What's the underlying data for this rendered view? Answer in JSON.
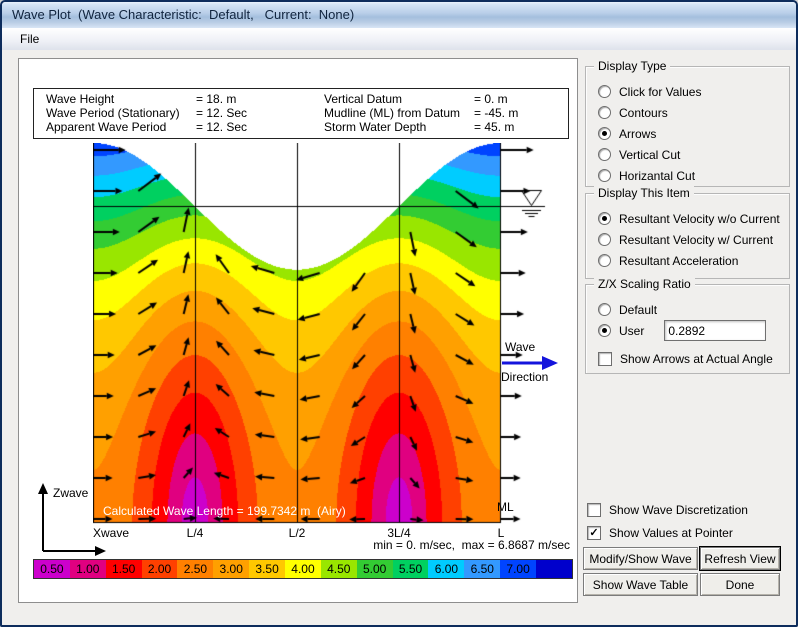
{
  "window": {
    "title": "Wave Plot  (Wave Characteristic:  Default,   Current:  None)",
    "menu_file": "File"
  },
  "stats": {
    "left": [
      {
        "label": "Wave Height",
        "value": "= 18. m"
      },
      {
        "label": "Wave Period (Stationary)",
        "value": "= 12. Sec"
      },
      {
        "label": "Apparent Wave Period",
        "value": "= 12. Sec"
      }
    ],
    "right": [
      {
        "label": "Vertical Datum",
        "value": "= 0. m"
      },
      {
        "label": "Mudline (ML) from Datum",
        "value": "= -45. m"
      },
      {
        "label": "Storm Water Depth",
        "value": "= 45. m"
      }
    ]
  },
  "plot": {
    "calc_label": "Calculated Wave Length = 199.7342 m  (Airy)",
    "minmax": "min = 0. m/sec,  max = 6.8687 m/sec",
    "x_axis": "Xwave",
    "z_axis": "Zwave",
    "x_ticks": [
      "L/4",
      "L/2",
      "3L/4",
      "L"
    ],
    "wave_word": "Wave",
    "direction_word": "Direction",
    "ml_label": "ML"
  },
  "display_type": {
    "title": "Display Type",
    "options": [
      {
        "label": "Click for Values",
        "selected": false
      },
      {
        "label": "Contours",
        "selected": false
      },
      {
        "label": "Arrows",
        "selected": true
      },
      {
        "label": "Vertical Cut",
        "selected": false
      },
      {
        "label": "Horizantal Cut",
        "selected": false
      }
    ]
  },
  "display_item": {
    "title": "Display This Item",
    "options": [
      {
        "label": "Resultant Velocity w/o Current",
        "selected": true
      },
      {
        "label": "Resultant Velocity w/ Current",
        "selected": false
      },
      {
        "label": "Resultant Acceleration",
        "selected": false
      }
    ]
  },
  "scaling": {
    "title": "Z/X Scaling Ratio",
    "options": [
      {
        "label": "Default",
        "selected": false
      },
      {
        "label": "User",
        "selected": true
      }
    ],
    "user_value": "0.2892",
    "arrow_angle_checkbox": {
      "label": "Show Arrows at Actual Angle",
      "checked": false
    }
  },
  "toggles": [
    {
      "label": "Show Wave Discretization",
      "checked": false
    },
    {
      "label": "Show Values at Pointer",
      "checked": true
    }
  ],
  "buttons": [
    {
      "label": "Modify/Show Wave"
    },
    {
      "label": "Refresh View"
    },
    {
      "label": "Show Wave Table"
    },
    {
      "label": "Done"
    }
  ],
  "colorbar": {
    "labels": [
      "0.50",
      "1.00",
      "1.50",
      "2.00",
      "2.50",
      "3.00",
      "3.50",
      "4.00",
      "4.50",
      "5.00",
      "5.50",
      "6.00",
      "6.50",
      "7.00",
      ""
    ],
    "colors": [
      "#CC00CC",
      "#E00080",
      "#FF0000",
      "#FF4000",
      "#FF8000",
      "#FFA000",
      "#FFC800",
      "#FFFF00",
      "#99E600",
      "#33CC33",
      "#00D060",
      "#00CCFF",
      "#3399FF",
      "#0044FF",
      "#0000CC"
    ]
  },
  "chart_data": {
    "type": "contour",
    "title": "Resultant velocity contours under one wave length (Airy theory)",
    "params": {
      "wave_height_m": 18,
      "period_sec": 12,
      "depth_m": 45,
      "wave_length_m": 199.7342,
      "min_velocity_mps": 0,
      "max_velocity_mps": 6.8687,
      "band_step_mps": 0.5
    },
    "x_ticks": [
      "L/4",
      "L/2",
      "3L/4",
      "L"
    ]
  }
}
